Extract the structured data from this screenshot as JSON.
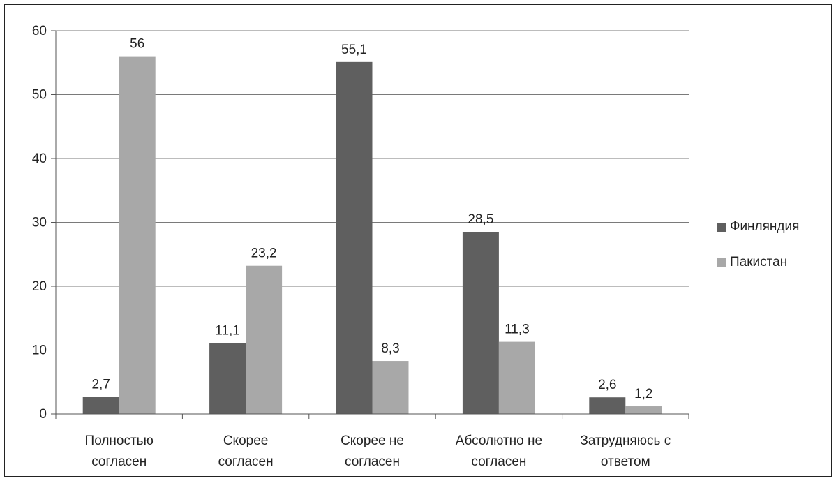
{
  "chart_data": {
    "type": "bar",
    "categories": [
      [
        "Полностью",
        "согласен"
      ],
      [
        "Скорее",
        "согласен"
      ],
      [
        "Скорее не",
        "согласен"
      ],
      [
        "Абсолютно не",
        "согласен"
      ],
      [
        "Затрудняюсь с",
        "ответом"
      ]
    ],
    "series": [
      {
        "name": "Финляндия",
        "color": "#5f5f5f",
        "values": [
          2.7,
          11.1,
          55.1,
          28.5,
          2.6
        ],
        "labels": [
          "2,7",
          "11,1",
          "55,1",
          "28,5",
          "2,6"
        ]
      },
      {
        "name": "Пакистан",
        "color": "#a8a8a8",
        "values": [
          56,
          23.2,
          8.3,
          11.3,
          1.2
        ],
        "labels": [
          "56",
          "23,2",
          "8,3",
          "11,3",
          "1,2"
        ]
      }
    ],
    "yticks": [
      "0",
      "10",
      "20",
      "30",
      "40",
      "50",
      "60"
    ],
    "ylim": [
      0,
      60
    ],
    "grid": true,
    "legend_position": "right"
  }
}
